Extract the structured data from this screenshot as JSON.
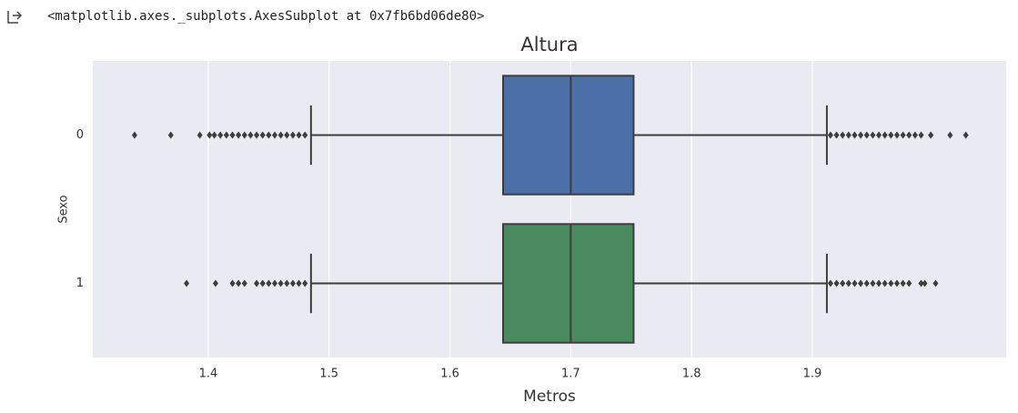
{
  "output": {
    "text": "<matplotlib.axes._subplots.AxesSubplot at 0x7fb6bd06de80>"
  },
  "chart_data": {
    "type": "boxplot",
    "orientation": "horizontal",
    "title": "Altura",
    "x_label": "Metros",
    "y_label": "Sexo",
    "categories": [
      "0",
      "1"
    ],
    "boxes": [
      {
        "color": "#4c6fa8",
        "whislo": 1.485,
        "q1": 1.644,
        "med": 1.7,
        "q3": 1.752,
        "whishi": 1.912,
        "fliers": [
          1.339,
          1.369,
          1.393,
          1.401,
          1.405,
          1.41,
          1.415,
          1.42,
          1.425,
          1.43,
          1.435,
          1.44,
          1.445,
          1.45,
          1.455,
          1.46,
          1.465,
          1.47,
          1.475,
          1.48,
          1.915,
          1.92,
          1.925,
          1.93,
          1.935,
          1.94,
          1.945,
          1.95,
          1.955,
          1.96,
          1.965,
          1.97,
          1.975,
          1.98,
          1.985,
          1.99,
          1.998,
          2.014,
          2.027
        ]
      },
      {
        "color": "#4a8a5f",
        "whislo": 1.485,
        "q1": 1.644,
        "med": 1.7,
        "q3": 1.752,
        "whishi": 1.912,
        "fliers": [
          1.382,
          1.406,
          1.42,
          1.425,
          1.43,
          1.44,
          1.445,
          1.45,
          1.455,
          1.46,
          1.465,
          1.47,
          1.475,
          1.48,
          1.915,
          1.92,
          1.925,
          1.93,
          1.935,
          1.94,
          1.945,
          1.95,
          1.955,
          1.96,
          1.965,
          1.97,
          1.975,
          1.98,
          1.99,
          1.993,
          2.002
        ]
      }
    ],
    "xlim": [
      1.3044,
      2.0604
    ],
    "xticks": [
      1.4,
      1.5,
      1.6,
      1.7,
      1.8,
      1.9
    ],
    "grid": true
  }
}
